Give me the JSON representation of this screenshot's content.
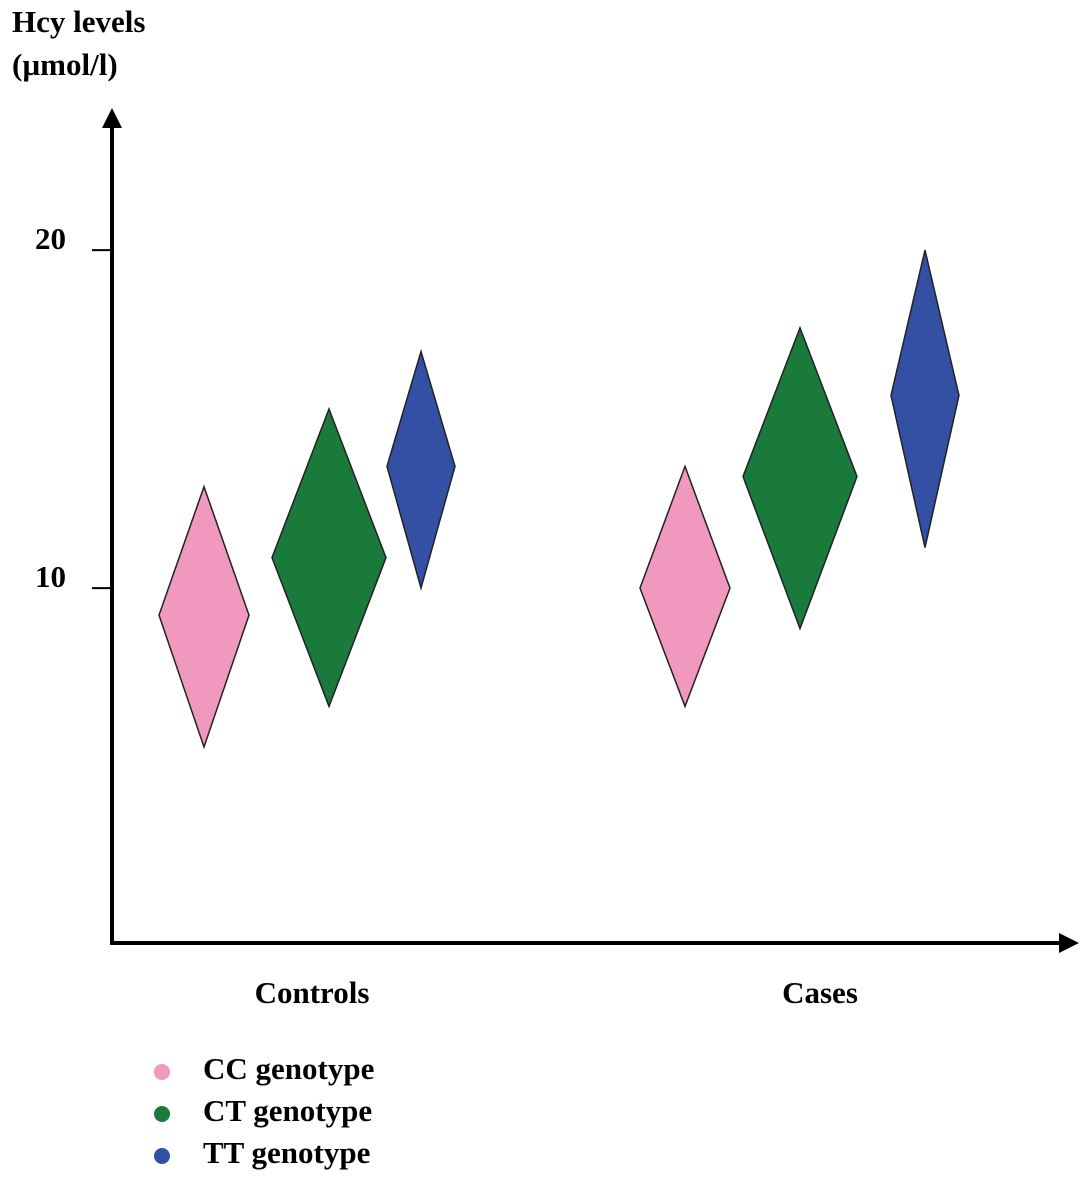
{
  "chart_data": {
    "type": "diamond",
    "y_label": [
      "Hcy levels",
      "(µmol/l)"
    ],
    "categories": [
      "Controls",
      "Cases"
    ],
    "ylim": [
      -0.5,
      24
    ],
    "yticks": [
      10,
      20
    ],
    "series": [
      {
        "name": "CC genotype",
        "color": "#f098be",
        "values": [
          9.2,
          10.0
        ],
        "low": [
          5.3,
          6.5
        ],
        "high": [
          13.0,
          13.6
        ]
      },
      {
        "name": "CT genotype",
        "color": "#1a7a3c",
        "values": [
          10.9,
          13.3
        ],
        "low": [
          6.5,
          8.8
        ],
        "high": [
          15.3,
          17.7
        ]
      },
      {
        "name": "TT genotype",
        "color": "#3350a4",
        "values": [
          13.6,
          15.7
        ],
        "low": [
          10.0,
          11.2
        ],
        "high": [
          17.0,
          20.0
        ]
      }
    ]
  }
}
